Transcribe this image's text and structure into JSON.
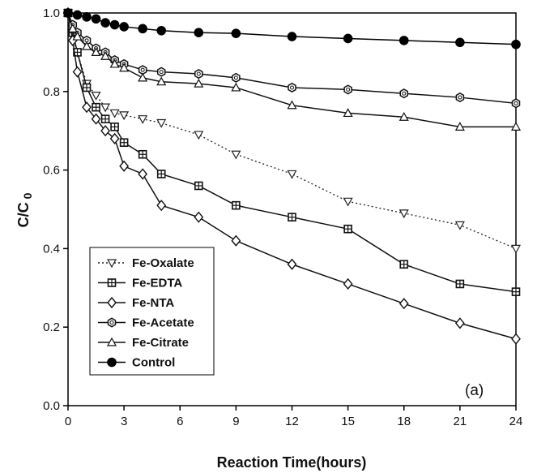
{
  "chart_data": {
    "type": "line",
    "xlabel": "Reaction Time(hours)",
    "ylabel": "C/C",
    "ylabel_subscript": "0",
    "panel_label": "(a)",
    "xlim": [
      0,
      24
    ],
    "ylim": [
      0.0,
      1.0
    ],
    "x_ticks": [
      0,
      3,
      6,
      9,
      12,
      15,
      18,
      21,
      24
    ],
    "x_tick_labels": [
      "0",
      "3",
      "6",
      "9",
      "12",
      "15",
      "18",
      "21",
      "24"
    ],
    "y_ticks": [
      0.0,
      0.2,
      0.4,
      0.6,
      0.8,
      1.0
    ],
    "y_tick_labels": [
      "0.0",
      "0.2",
      "0.4",
      "0.6",
      "0.8",
      "1.0"
    ],
    "grid": false,
    "legend_position": "bottom-left",
    "series": [
      {
        "name": "Fe-Oxalate",
        "marker": "triangle-down",
        "line_style": "dotted",
        "marker_fill": "#ffffff",
        "color": "#222222",
        "x": [
          0,
          0.25,
          0.5,
          1,
          1.5,
          2,
          2.5,
          3,
          4,
          5,
          7,
          9,
          12,
          15,
          18,
          21,
          24
        ],
        "y": [
          1.0,
          0.94,
          0.9,
          0.82,
          0.79,
          0.76,
          0.745,
          0.74,
          0.73,
          0.72,
          0.69,
          0.64,
          0.59,
          0.52,
          0.49,
          0.46,
          0.4
        ]
      },
      {
        "name": "Fe-EDTA",
        "marker": "square-cross",
        "line_style": "solid",
        "marker_fill": "#ffffff",
        "color": "#111111",
        "x": [
          0,
          0.25,
          0.5,
          1,
          1.5,
          2,
          2.5,
          3,
          4,
          5,
          7,
          9,
          12,
          15,
          18,
          21,
          24
        ],
        "y": [
          1.0,
          0.95,
          0.9,
          0.81,
          0.76,
          0.73,
          0.71,
          0.67,
          0.64,
          0.59,
          0.56,
          0.51,
          0.48,
          0.45,
          0.36,
          0.31,
          0.29
        ]
      },
      {
        "name": "Fe-NTA",
        "marker": "diamond",
        "line_style": "solid",
        "marker_fill": "#ffffff",
        "color": "#111111",
        "x": [
          0,
          0.25,
          0.5,
          1,
          1.5,
          2,
          2.5,
          3,
          4,
          5,
          7,
          9,
          12,
          15,
          18,
          21,
          24
        ],
        "y": [
          1.0,
          0.93,
          0.85,
          0.76,
          0.73,
          0.7,
          0.68,
          0.61,
          0.59,
          0.51,
          0.48,
          0.42,
          0.36,
          0.31,
          0.26,
          0.21,
          0.17
        ]
      },
      {
        "name": "Fe-Acetate",
        "marker": "hex-circle",
        "line_style": "solid",
        "marker_fill": "#ffffff",
        "color": "#111111",
        "x": [
          0,
          0.25,
          0.5,
          1,
          1.5,
          2,
          2.5,
          3,
          4,
          5,
          7,
          9,
          12,
          15,
          18,
          21,
          24
        ],
        "y": [
          1.0,
          0.97,
          0.95,
          0.93,
          0.91,
          0.9,
          0.88,
          0.87,
          0.855,
          0.85,
          0.845,
          0.835,
          0.81,
          0.805,
          0.795,
          0.785,
          0.77
        ]
      },
      {
        "name": "Fe-Citrate",
        "marker": "triangle-up",
        "line_style": "solid",
        "marker_fill": "#ffffff",
        "color": "#111111",
        "x": [
          0,
          0.25,
          0.5,
          1,
          1.5,
          2,
          2.5,
          3,
          4,
          5,
          7,
          9,
          12,
          15,
          18,
          21,
          24
        ],
        "y": [
          1.0,
          0.96,
          0.94,
          0.915,
          0.9,
          0.89,
          0.87,
          0.86,
          0.835,
          0.825,
          0.82,
          0.81,
          0.765,
          0.745,
          0.735,
          0.71,
          0.71
        ]
      },
      {
        "name": "Control",
        "marker": "circle",
        "line_style": "solid",
        "marker_fill": "#000000",
        "color": "#000000",
        "x": [
          0,
          0.5,
          1,
          1.5,
          2,
          2.5,
          3,
          4,
          5,
          7,
          9,
          12,
          15,
          18,
          21,
          24
        ],
        "y": [
          1.0,
          0.995,
          0.99,
          0.985,
          0.975,
          0.97,
          0.965,
          0.96,
          0.955,
          0.95,
          0.948,
          0.94,
          0.935,
          0.93,
          0.925,
          0.92
        ]
      }
    ]
  }
}
